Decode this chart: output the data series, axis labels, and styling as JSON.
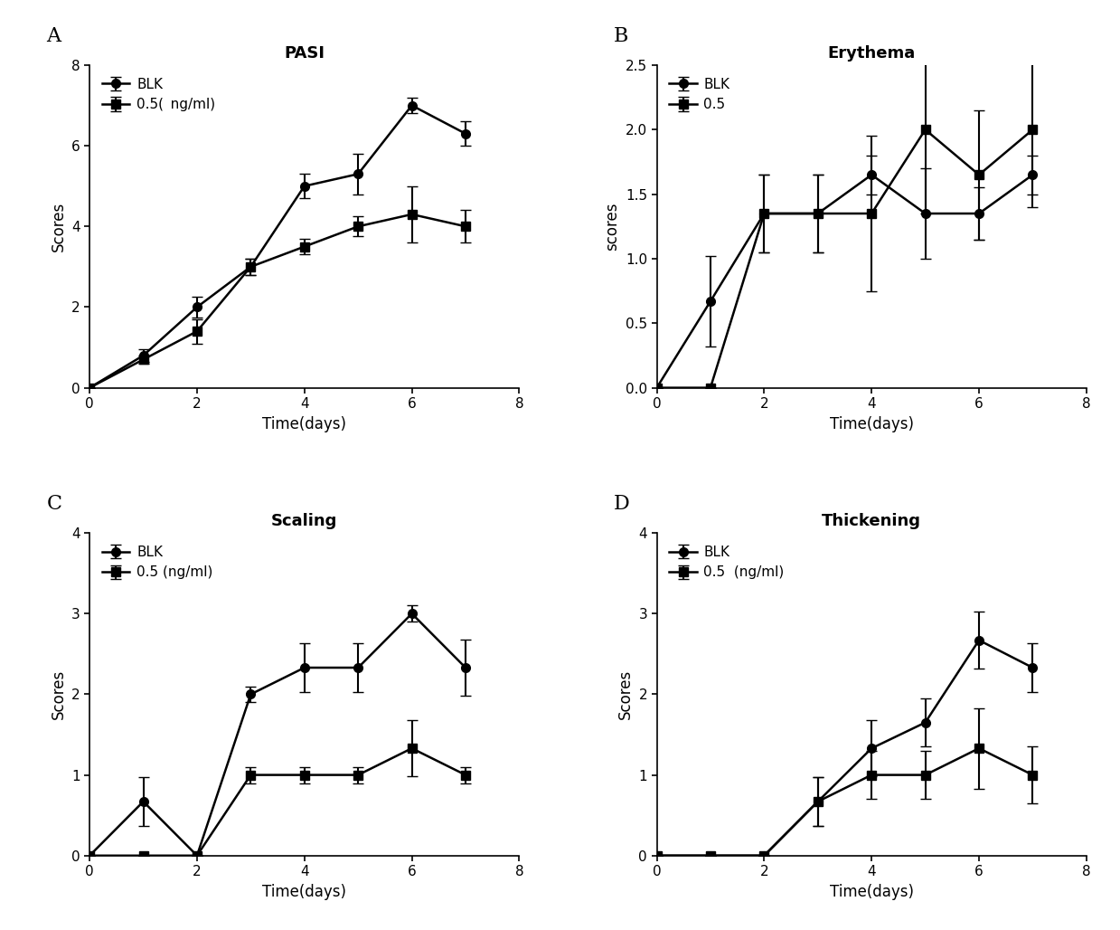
{
  "days": [
    0,
    1,
    2,
    3,
    4,
    5,
    6,
    7
  ],
  "A_title": "PASI",
  "A_blk_y": [
    0,
    0.8,
    2.0,
    3.0,
    5.0,
    5.3,
    7.0,
    6.3
  ],
  "A_blk_err": [
    0,
    0.15,
    0.25,
    0.2,
    0.3,
    0.5,
    0.2,
    0.3
  ],
  "A_05_y": [
    0,
    0.7,
    1.4,
    3.0,
    3.5,
    4.0,
    4.3,
    4.0
  ],
  "A_05_err": [
    0,
    0.1,
    0.3,
    0.2,
    0.2,
    0.25,
    0.7,
    0.4
  ],
  "A_ylabel": "Scores",
  "A_xlabel": "Time(days)",
  "A_ylim": [
    0,
    8
  ],
  "A_yticks": [
    0,
    2,
    4,
    6,
    8
  ],
  "A_xlim": [
    0,
    8
  ],
  "A_xticks": [
    0,
    2,
    4,
    6,
    8
  ],
  "A_legend1": "BLK",
  "A_legend2": "0.5( ng/ml)",
  "B_title": "Erythema",
  "B_blk_y": [
    0,
    0.67,
    1.35,
    1.35,
    1.65,
    1.35,
    1.35,
    1.65
  ],
  "B_blk_err": [
    0,
    0.35,
    0.3,
    0.3,
    0.15,
    0.35,
    0.2,
    0.15
  ],
  "B_05_y": [
    0,
    0,
    1.35,
    1.35,
    1.35,
    2.0,
    1.65,
    2.0
  ],
  "B_05_err": [
    0,
    0,
    0.3,
    0.3,
    0.6,
    0.65,
    0.5,
    0.6
  ],
  "B_ylabel": "scores",
  "B_xlabel": "Time(days)",
  "B_ylim": [
    0,
    2.5
  ],
  "B_yticks": [
    0.0,
    0.5,
    1.0,
    1.5,
    2.0,
    2.5
  ],
  "B_xlim": [
    0,
    8
  ],
  "B_xticks": [
    0,
    2,
    4,
    6,
    8
  ],
  "B_legend1": "BLK",
  "B_legend2": "0.5",
  "C_title": "Scaling",
  "C_blk_y": [
    0,
    0.67,
    0.0,
    2.0,
    2.33,
    2.33,
    3.0,
    2.33
  ],
  "C_blk_err": [
    0,
    0.3,
    0,
    0.1,
    0.3,
    0.3,
    0.1,
    0.35
  ],
  "C_05_y": [
    0,
    0,
    0.0,
    1.0,
    1.0,
    1.0,
    1.33,
    1.0
  ],
  "C_05_err": [
    0,
    0,
    0,
    0.1,
    0.1,
    0.1,
    0.35,
    0.1
  ],
  "C_ylabel": "Scores",
  "C_xlabel": "Time(days)",
  "C_ylim": [
    0,
    4
  ],
  "C_yticks": [
    0,
    1,
    2,
    3,
    4
  ],
  "C_xlim": [
    0,
    8
  ],
  "C_xticks": [
    0,
    2,
    4,
    6,
    8
  ],
  "C_legend1": "BLK",
  "C_legend2": "0.5 (ng/ml)",
  "D_title": "Thickening",
  "D_blk_y": [
    0,
    0,
    0,
    0.67,
    1.33,
    1.65,
    2.67,
    2.33
  ],
  "D_blk_err": [
    0,
    0,
    0,
    0.3,
    0.35,
    0.3,
    0.35,
    0.3
  ],
  "D_05_y": [
    0,
    0,
    0,
    0.67,
    1.0,
    1.0,
    1.33,
    1.0
  ],
  "D_05_err": [
    0,
    0,
    0,
    0.3,
    0.3,
    0.3,
    0.5,
    0.35
  ],
  "D_ylabel": "Scores",
  "D_xlabel": "Time(days)",
  "D_ylim": [
    0,
    4
  ],
  "D_yticks": [
    0,
    1,
    2,
    3,
    4
  ],
  "D_xlim": [
    0,
    8
  ],
  "D_xticks": [
    0,
    2,
    4,
    6,
    8
  ],
  "D_legend1": "BLK",
  "D_legend2": "0.5  (ng/ml)",
  "line_color": "#000000",
  "marker_circle": "o",
  "marker_square": "s",
  "markersize": 7,
  "linewidth": 1.8,
  "capsize": 4,
  "elinewidth": 1.5,
  "panel_labels": [
    "A",
    "B",
    "C",
    "D"
  ],
  "figsize": [
    12.39,
    10.28
  ],
  "dpi": 100
}
